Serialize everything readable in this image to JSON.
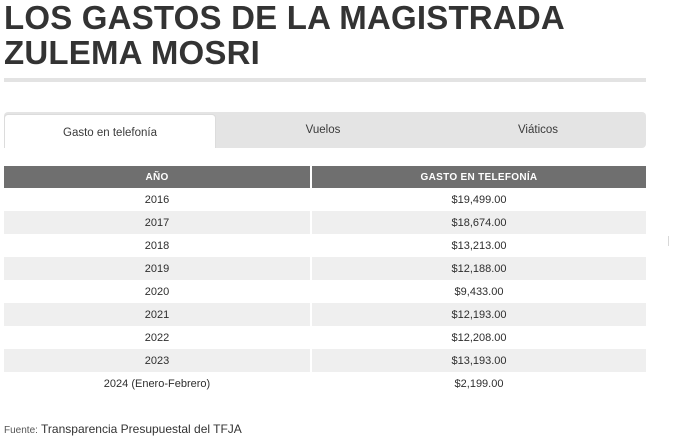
{
  "title": {
    "line1": "LOS GASTOS DE LA MAGISTRADA",
    "line2": "ZULEMA MOSRI"
  },
  "tabs": [
    {
      "label": "Gasto en telefonía",
      "active": true
    },
    {
      "label": "Vuelos",
      "active": false
    },
    {
      "label": "Viáticos",
      "active": false
    }
  ],
  "table": {
    "headers": [
      "AÑO",
      "GASTO EN TELEFONÍA"
    ],
    "rows": [
      {
        "year": "2016",
        "amount": "$19,499.00"
      },
      {
        "year": "2017",
        "amount": "$18,674.00"
      },
      {
        "year": "2018",
        "amount": "$13,213.00"
      },
      {
        "year": "2019",
        "amount": "$12,188.00"
      },
      {
        "year": "2020",
        "amount": "$9,433.00"
      },
      {
        "year": "2021",
        "amount": "$12,193.00"
      },
      {
        "year": "2022",
        "amount": "$12,208.00"
      },
      {
        "year": "2023",
        "amount": "$13,193.00"
      },
      {
        "year": "2024 (Enero-Febrero)",
        "amount": "$2,199.00"
      }
    ]
  },
  "source": {
    "label": "Fuente:",
    "text": "Transparencia Presupuestal del TFJA"
  },
  "colors": {
    "header_bg": "#6f6f6f",
    "tab_bar_bg": "#e4e4e4",
    "row_shade": "#efefef",
    "title": "#333333"
  }
}
